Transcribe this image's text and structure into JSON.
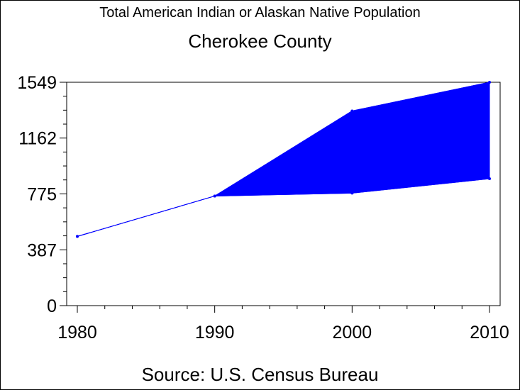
{
  "title": "Total American Indian or Alaskan Native Population",
  "subtitle": "Cherokee County",
  "footnote": "Source: U.S. Census Bureau",
  "colors": {
    "fill": "#0000ff",
    "line": "#0000ff",
    "axis": "#000000"
  },
  "chart_data": {
    "type": "area",
    "title": "Total American Indian or Alaskan Native Population",
    "subtitle": "Cherokee County",
    "xlabel": "",
    "ylabel": "",
    "x": [
      1980,
      1990,
      2000,
      2010
    ],
    "xlim": [
      1980,
      2010
    ],
    "ylim": [
      0,
      1549
    ],
    "yticks": [
      0,
      387,
      775,
      1162,
      1549
    ],
    "xticks": [
      1980,
      1990,
      2000,
      2010
    ],
    "series": [
      {
        "values": [
          480,
          760,
          1350,
          1549
        ]
      },
      {
        "values": [
          480,
          760,
          780,
          880
        ]
      }
    ],
    "grid": false,
    "legend": "none"
  }
}
